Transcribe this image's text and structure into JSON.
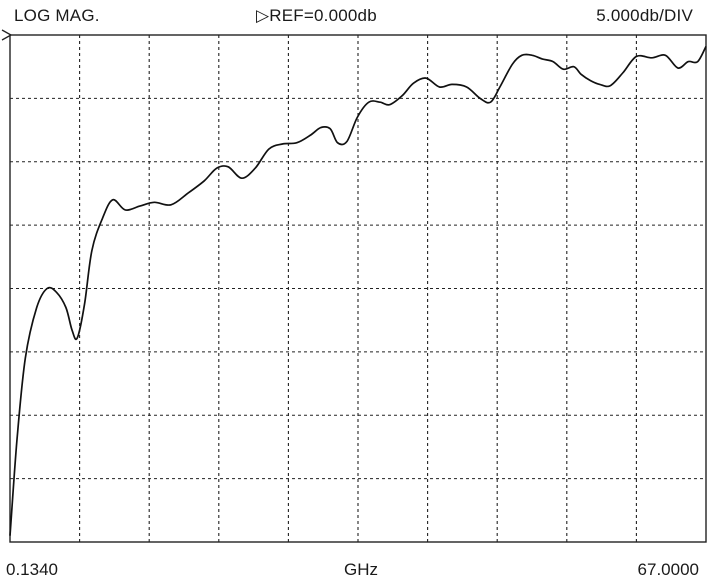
{
  "header": {
    "mode": "LOG MAG.",
    "reference": "▷REF=0.000db",
    "scale": "5.000db/DIV"
  },
  "footer": {
    "start": "0.1340",
    "unit": "GHz",
    "stop": "67.0000"
  },
  "chart_data": {
    "type": "line",
    "title": "",
    "xlabel": "GHz",
    "ylabel": "",
    "xlim": [
      0.134,
      67.0
    ],
    "ylim": [
      -40,
      0
    ],
    "divisions": {
      "x": 10,
      "y": 8
    },
    "grid": true,
    "reference_db": 0.0,
    "db_per_div": 5.0,
    "series": [
      {
        "values": [
          [
            0.134,
            -39.5
          ],
          [
            0.8,
            -32.0
          ],
          [
            1.6,
            -25.5
          ],
          [
            2.7,
            -21.5
          ],
          [
            3.7,
            -20.0
          ],
          [
            4.6,
            -20.3
          ],
          [
            5.5,
            -21.5
          ],
          [
            6.1,
            -23.3
          ],
          [
            6.6,
            -23.9
          ],
          [
            7.3,
            -21.2
          ],
          [
            8.0,
            -17.0
          ],
          [
            9.0,
            -14.5
          ],
          [
            10.0,
            -13.0
          ],
          [
            11.2,
            -13.8
          ],
          [
            12.6,
            -13.5
          ],
          [
            14.0,
            -13.2
          ],
          [
            15.6,
            -13.4
          ],
          [
            17.2,
            -12.5
          ],
          [
            18.8,
            -11.5
          ],
          [
            20.0,
            -10.5
          ],
          [
            21.1,
            -10.4
          ],
          [
            22.4,
            -11.3
          ],
          [
            23.7,
            -10.5
          ],
          [
            25.0,
            -9.0
          ],
          [
            26.3,
            -8.6
          ],
          [
            27.7,
            -8.5
          ],
          [
            29.0,
            -7.9
          ],
          [
            30.0,
            -7.3
          ],
          [
            30.9,
            -7.4
          ],
          [
            31.6,
            -8.5
          ],
          [
            32.5,
            -8.4
          ],
          [
            33.5,
            -6.5
          ],
          [
            34.6,
            -5.3
          ],
          [
            35.7,
            -5.3
          ],
          [
            36.6,
            -5.5
          ],
          [
            37.8,
            -4.8
          ],
          [
            38.9,
            -3.8
          ],
          [
            40.1,
            -3.4
          ],
          [
            41.4,
            -4.1
          ],
          [
            42.6,
            -3.9
          ],
          [
            44.0,
            -4.1
          ],
          [
            45.3,
            -5.0
          ],
          [
            46.3,
            -5.3
          ],
          [
            47.2,
            -4.1
          ],
          [
            48.4,
            -2.3
          ],
          [
            49.3,
            -1.6
          ],
          [
            50.3,
            -1.6
          ],
          [
            51.3,
            -1.9
          ],
          [
            52.3,
            -2.1
          ],
          [
            53.3,
            -2.7
          ],
          [
            54.3,
            -2.5
          ],
          [
            55.0,
            -3.1
          ],
          [
            55.9,
            -3.6
          ],
          [
            56.8,
            -3.9
          ],
          [
            57.8,
            -4.0
          ],
          [
            59.0,
            -3.0
          ],
          [
            60.3,
            -1.7
          ],
          [
            61.8,
            -1.8
          ],
          [
            63.1,
            -1.6
          ],
          [
            64.3,
            -2.6
          ],
          [
            65.3,
            -2.1
          ],
          [
            66.2,
            -2.1
          ],
          [
            67.0,
            -0.9
          ]
        ]
      }
    ]
  }
}
